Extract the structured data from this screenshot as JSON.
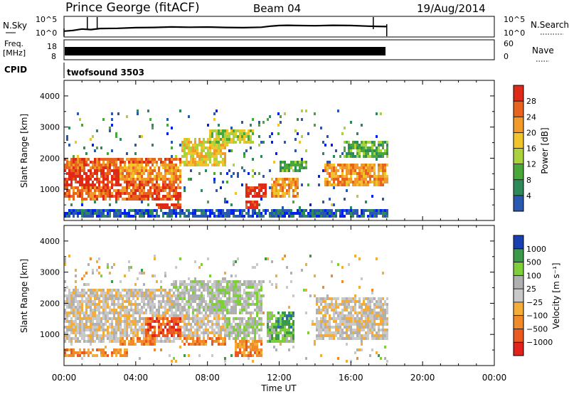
{
  "header": {
    "station": "Prince George (fitACF)",
    "beam": "Beam 04",
    "date": "19/Aug/2014"
  },
  "panels": {
    "nsky": {
      "label": "N.Sky",
      "ticks": [
        "10^5",
        "10^0"
      ],
      "right_ticks": [
        "10^5",
        "10^0"
      ],
      "right_label": "N.Search",
      "profile": [
        [
          0,
          0.35
        ],
        [
          0.5,
          0.42
        ],
        [
          1,
          0.55
        ],
        [
          1.5,
          0.5
        ],
        [
          2,
          0.6
        ],
        [
          3,
          0.62
        ],
        [
          4,
          0.68
        ],
        [
          5,
          0.7
        ],
        [
          6,
          0.75
        ],
        [
          7,
          0.72
        ],
        [
          8,
          0.74
        ],
        [
          9,
          0.7
        ],
        [
          10,
          0.68
        ],
        [
          11,
          0.72
        ],
        [
          11.5,
          0.82
        ],
        [
          12,
          0.88
        ],
        [
          12.5,
          0.9
        ],
        [
          13,
          0.88
        ],
        [
          14,
          0.86
        ],
        [
          15,
          0.9
        ],
        [
          16,
          0.88
        ],
        [
          17,
          0.82
        ],
        [
          17.5,
          0.8
        ],
        [
          18,
          0.78
        ]
      ],
      "spikes": [
        1.3,
        1.85,
        17.25
      ]
    },
    "freq": {
      "label_top": "Freq.",
      "label_unit": "[MHz]",
      "ticks": [
        "18",
        "8"
      ],
      "right_ticks": [
        "60",
        "0"
      ],
      "right_label": "Nave"
    },
    "cpid": {
      "label": "CPID",
      "value": "twofsound 3503"
    }
  },
  "x_axis": {
    "label": "Time UT",
    "ticks": [
      "00:00",
      "04:00",
      "08:00",
      "12:00",
      "16:00",
      "20:00",
      "00:00"
    ]
  },
  "colors": {
    "power": [
      "#0022ee",
      "#2a57b0",
      "#2e8a5a",
      "#4aa83a",
      "#a9d23c",
      "#f0c42a",
      "#f19a2a",
      "#e8641e",
      "#e02a18"
    ],
    "velocity": [
      "#e2231c",
      "#ea5a20",
      "#f08a2a",
      "#f5ad3a",
      "#c9c9c9",
      "#b0b0b0",
      "#7ecf3a",
      "#3a9a4a",
      "#2e6e9e",
      "#1a3fb0"
    ]
  },
  "chart_data": [
    {
      "type": "heatmap",
      "name": "power",
      "ylabel": "Slant Range [km]",
      "yticks": [
        1000,
        2000,
        3000,
        4000
      ],
      "ylim": [
        0,
        4500
      ],
      "xlim": [
        0,
        24
      ],
      "data_end_hour": 18,
      "colorbar": {
        "label": "Power [dB]",
        "ticks": [
          4,
          8,
          12,
          16,
          20,
          24,
          28
        ],
        "range": [
          0,
          32
        ]
      },
      "regions": [
        {
          "x": [
            0,
            6.5
          ],
          "y": [
            700,
            2100
          ],
          "level": 7
        },
        {
          "x": [
            0,
            3.5
          ],
          "y": [
            1100,
            1700
          ],
          "level": 8
        },
        {
          "x": [
            3,
            6.5
          ],
          "y": [
            1300,
            1900
          ],
          "level": 6
        },
        {
          "x": [
            6.5,
            9
          ],
          "y": [
            1800,
            2700
          ],
          "level": 5
        },
        {
          "x": [
            8,
            10.5
          ],
          "y": [
            2500,
            3000
          ],
          "level": 4
        },
        {
          "x": [
            5,
            6.5
          ],
          "y": [
            200,
            550
          ],
          "level": 8
        },
        {
          "x": [
            10,
            11.2
          ],
          "y": [
            800,
            1200
          ],
          "level": 8
        },
        {
          "x": [
            10,
            10.8
          ],
          "y": [
            250,
            700
          ],
          "level": 8
        },
        {
          "x": [
            11.5,
            13
          ],
          "y": [
            800,
            1400
          ],
          "level": 6
        },
        {
          "x": [
            12,
            13.5
          ],
          "y": [
            1600,
            2000
          ],
          "level": 3
        },
        {
          "x": [
            14.5,
            18
          ],
          "y": [
            1100,
            1900
          ],
          "level": 6
        },
        {
          "x": [
            15.5,
            18
          ],
          "y": [
            2100,
            2600
          ],
          "level": 3
        },
        {
          "x": [
            0,
            18
          ],
          "y": [
            150,
            400
          ],
          "level": 1
        }
      ]
    },
    {
      "type": "heatmap",
      "name": "velocity",
      "ylabel": "Slant Range [km]",
      "yticks": [
        1000,
        2000,
        3000,
        4000
      ],
      "ylim": [
        0,
        4500
      ],
      "xlim": [
        0,
        24
      ],
      "data_end_hour": 18,
      "colorbar": {
        "label": "Velocity [m s⁻¹]",
        "ticks": [
          "1000",
          "500",
          "100",
          "25",
          "−25",
          "−100",
          "−500",
          "−1000"
        ]
      },
      "regions": [
        {
          "x": [
            0,
            9
          ],
          "y": [
            800,
            2500
          ],
          "level": 4
        },
        {
          "x": [
            6,
            11
          ],
          "y": [
            1700,
            2800
          ],
          "level": 5
        },
        {
          "x": [
            14,
            18
          ],
          "y": [
            900,
            2200
          ],
          "level": 4
        },
        {
          "x": [
            4.5,
            6.5
          ],
          "y": [
            1000,
            1600
          ],
          "level": 1
        },
        {
          "x": [
            3,
            5
          ],
          "y": [
            700,
            1000
          ],
          "level": 2
        },
        {
          "x": [
            6.5,
            9
          ],
          "y": [
            700,
            1000
          ],
          "level": 2
        },
        {
          "x": [
            0,
            3.5
          ],
          "y": [
            300,
            550
          ],
          "level": 2
        },
        {
          "x": [
            9,
            11
          ],
          "y": [
            900,
            1600
          ],
          "level": 5
        },
        {
          "x": [
            11.3,
            12.8
          ],
          "y": [
            800,
            1800
          ],
          "level": 6
        },
        {
          "x": [
            11.8,
            12.8
          ],
          "y": [
            1100,
            1800
          ],
          "level": 7
        },
        {
          "x": [
            9.5,
            11
          ],
          "y": [
            300,
            900
          ],
          "level": 2
        }
      ]
    }
  ]
}
